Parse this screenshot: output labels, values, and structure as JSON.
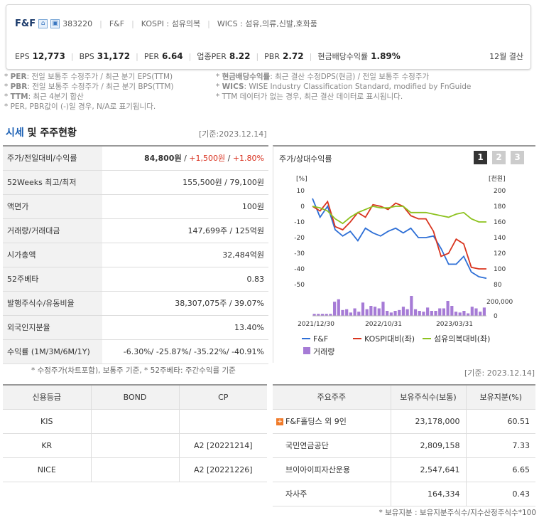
{
  "header": {
    "company": "F&F",
    "code": "383220",
    "name_en": "F&F",
    "market": "KOSPI : 섬유의복",
    "wics": "WICS : 섬유,의류,신발,호화품",
    "metrics": [
      {
        "key": "EPS",
        "value": "12,773"
      },
      {
        "key": "BPS",
        "value": "31,172"
      },
      {
        "key": "PER",
        "value": "6.64"
      },
      {
        "key": "업종PER",
        "value": "8.22"
      },
      {
        "key": "PBR",
        "value": "2.72"
      },
      {
        "key": "현금배당수익률",
        "value": "1.89%"
      }
    ],
    "settlement": "12월 결산"
  },
  "notes_left": [
    {
      "term": "PER",
      "text": ": 전일 보통주 수정주가 / 최근 분기 EPS(TTM)"
    },
    {
      "term": "PBR",
      "text": ": 전일 보통주 수정주가 / 최근 분기 BPS(TTM)"
    },
    {
      "term": "TTM",
      "text": ": 최근 4분기 합산"
    },
    {
      "term": "",
      "text": "PER, PBR값이 (-)일 경우, N/A로 표기됩니다."
    }
  ],
  "notes_right": [
    {
      "term": "현금배당수익률",
      "text": ": 최근 결산 수정DPS(현금) / 전일 보통주 수정주가"
    },
    {
      "term": "WICS",
      "text": ": WISE Industry Classification Standard, modified by FnGuide"
    },
    {
      "term": "",
      "text": "TTM 데이터가 없는 경우, 최근 결산 데이터로 표시됩니다."
    }
  ],
  "section": {
    "title_blue": "시세",
    "title_rest": " 및 주주현황",
    "base_date": "[기준:2023.12.14]"
  },
  "stock_rows": [
    {
      "label": "주가/전일대비/수익률",
      "v1": "84,800원",
      "v2": "+1,500원",
      "v3": "+1.80%"
    },
    {
      "label": "52Weeks 최고/최저",
      "value": "155,500원 / 79,100원"
    },
    {
      "label": "액면가",
      "value": "100원"
    },
    {
      "label": "거래량/거래대금",
      "value": "147,699주 / 125억원"
    },
    {
      "label": "시가총액",
      "value": "32,484억원"
    },
    {
      "label": "52주베타",
      "value": "0.83"
    },
    {
      "label": "발행주식수/유동비율",
      "value": "38,307,075주 / 39.07%"
    },
    {
      "label": "외국인지분율",
      "value": "13.40%"
    },
    {
      "label": "수익률 (1M/3M/6M/1Y)",
      "value": "-6.30%/ -25.87%/ -35.22%/ -40.91%"
    }
  ],
  "stock_note": "* 수정주가(차트포함), 보통주 기준, * 52주베타: 주간수익률 기준",
  "chart_data": {
    "type": "line",
    "title": "주가/상대수익률",
    "tabs": [
      "1",
      "2",
      "3"
    ],
    "left_unit": "[%]",
    "right_unit": "[천원]",
    "left_ticks": [
      "10",
      "0",
      "-10",
      "-20",
      "-30",
      "-40",
      "-50"
    ],
    "right_ticks": [
      "200",
      "180",
      "160",
      "140",
      "120",
      "100",
      "80"
    ],
    "volume_ticks": [
      "200,000",
      "0"
    ],
    "x_labels": [
      "2021/12/30",
      "2022/10/31",
      "2023/03/31"
    ],
    "ylim": [
      -50,
      10
    ],
    "series": [
      {
        "name": "F&F",
        "color": "#2e6fd6",
        "values": [
          5,
          -7,
          0,
          -15,
          -19,
          -16,
          -22,
          -14,
          -17,
          -19,
          -16,
          -14,
          -17,
          -14,
          -20,
          -20,
          -19,
          -27,
          -37,
          -37,
          -32,
          -42,
          -45,
          -46
        ]
      },
      {
        "name": "KOSPI대비(좌)",
        "color": "#d9351f",
        "values": [
          0,
          -3,
          3,
          -13,
          -15,
          -10,
          -4,
          -7,
          1,
          0,
          -2,
          2,
          0,
          -6,
          -8,
          -8,
          -16,
          -32,
          -30,
          -21,
          -24,
          -39,
          -40,
          -40
        ]
      },
      {
        "name": "섬유의복대비(좌)",
        "color": "#8dc21f",
        "values": [
          0,
          -1,
          -3,
          -8,
          -11,
          -7,
          -4,
          -2,
          0,
          -1,
          -1,
          0,
          0,
          -4,
          -4,
          -4,
          -5,
          -6,
          -7,
          -5,
          -4,
          -8,
          -10,
          -10
        ]
      }
    ],
    "volume": {
      "name": "거래량",
      "color": "#a67bd6",
      "values": [
        12,
        12,
        12,
        12,
        12,
        85,
        100,
        35,
        40,
        20,
        45,
        25,
        80,
        40,
        60,
        55,
        45,
        85,
        30,
        20,
        30,
        35,
        55,
        40,
        120,
        40,
        30,
        25,
        50,
        30,
        30,
        45,
        45,
        90,
        60,
        25,
        20,
        30,
        15,
        55,
        45,
        25,
        50
      ]
    }
  },
  "base_date2": "[기준: 2023.12.14]",
  "credit": {
    "headers": [
      "신용등급",
      "BOND",
      "CP"
    ],
    "rows": [
      [
        "KIS",
        "",
        ""
      ],
      [
        "KR",
        "",
        "A2  [20221214]"
      ],
      [
        "NICE",
        "",
        "A2  [20221226]"
      ]
    ]
  },
  "holders": {
    "headers": [
      "주요주주",
      "보유주식수(보통)",
      "보유지분(%)"
    ],
    "rows": [
      {
        "name": "F&F홀딩스 외 9인",
        "shares": "23,178,000",
        "pct": "60.51",
        "expand": "+"
      },
      {
        "name": "국민연금공단",
        "shares": "2,809,158",
        "pct": "7.33"
      },
      {
        "name": "브이아이피자산운용",
        "shares": "2,547,641",
        "pct": "6.65"
      },
      {
        "name": "자사주",
        "shares": "164,334",
        "pct": "0.43"
      }
    ],
    "note": "* 보유지분 : 보유지분주식수/지수산정주식수*100"
  }
}
